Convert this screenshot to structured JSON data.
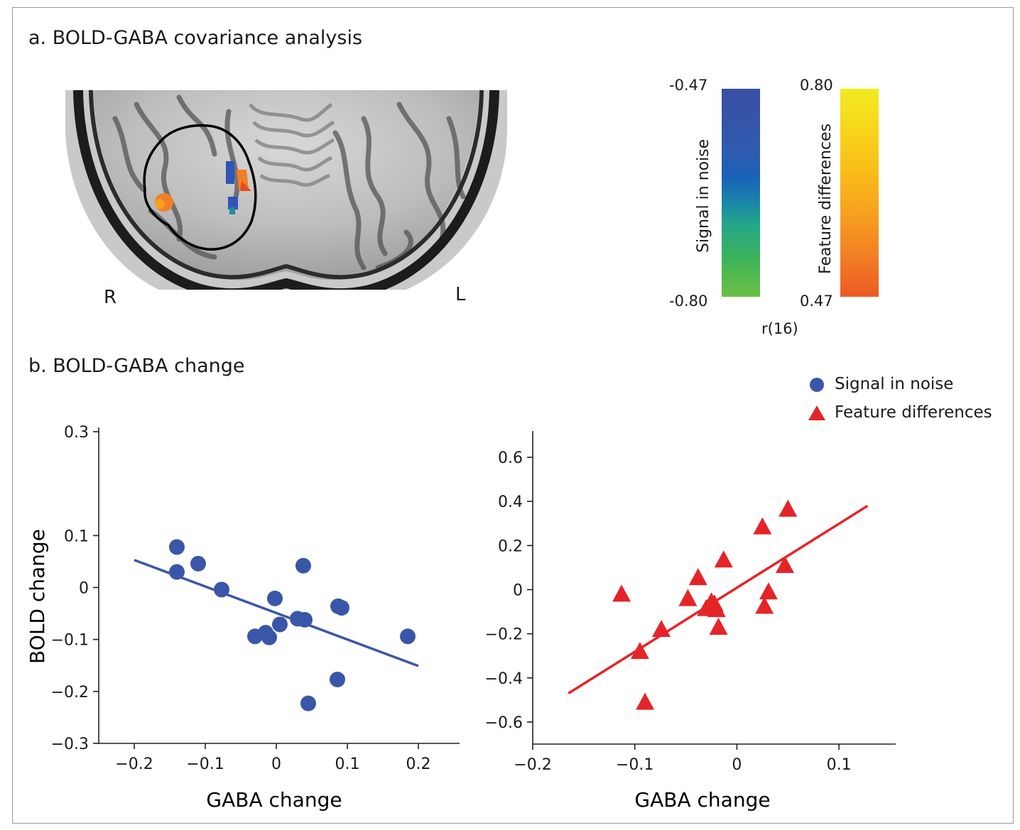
{
  "panel_a": {
    "title": "a. BOLD-GABA covariance analysis",
    "hemisphere_right": "R",
    "hemisphere_left": "L",
    "colorbars": {
      "signal": {
        "label": "Signal in noise",
        "top": "-0.47",
        "bottom": "-0.80",
        "colors": [
          "#3a4ea3",
          "#1a61b8",
          "#24a68a",
          "#6cbf42"
        ]
      },
      "feature": {
        "label": "Feature differences",
        "top": "0.80",
        "bottom": "0.47",
        "colors": [
          "#f1ea22",
          "#f9b918",
          "#f27f24",
          "#ec5a23"
        ]
      },
      "unit": "r(16)"
    }
  },
  "panel_b": {
    "title": "b. BOLD-GABA change",
    "legend": [
      {
        "label": "Signal in noise",
        "marker": "circle",
        "color": "#3a56a8"
      },
      {
        "label": "Feature differences",
        "marker": "triangle",
        "color": "#e52428"
      }
    ]
  },
  "chart_data": [
    {
      "type": "scatter",
      "series": [
        {
          "name": "Signal in noise",
          "marker": "circle",
          "color": "#3a56a8",
          "x": [
            -0.14,
            -0.14,
            -0.11,
            -0.077,
            -0.002,
            -0.03,
            -0.015,
            -0.01,
            0.005,
            0.03,
            0.038,
            0.04,
            0.087,
            0.092,
            0.086,
            0.045,
            0.185
          ],
          "y": [
            0.078,
            0.03,
            0.046,
            -0.004,
            -0.021,
            -0.094,
            -0.087,
            -0.096,
            -0.071,
            -0.06,
            0.042,
            -0.062,
            -0.036,
            -0.039,
            -0.177,
            -0.223,
            -0.094
          ]
        }
      ],
      "fit": {
        "x": [
          -0.2,
          0.2
        ],
        "y": [
          0.053,
          -0.151
        ]
      },
      "xlabel": "GABA change",
      "ylabel": "BOLD change",
      "xlim": [
        -0.25,
        0.25
      ],
      "ylim": [
        -0.3,
        0.3
      ],
      "xticks": [
        -0.2,
        -0.1,
        0,
        0.1,
        0.2
      ],
      "xtick_labels": [
        "−0.2",
        "−0.1",
        "0",
        "0.1",
        "0.2"
      ],
      "yticks": [
        0.3,
        0.1,
        0,
        -0.1,
        -0.2,
        -0.3
      ],
      "ytick_labels": [
        "0.3",
        "0.1",
        "0",
        "−0.1",
        "−0.2",
        "−0.3"
      ]
    },
    {
      "type": "scatter",
      "series": [
        {
          "name": "Feature differences",
          "marker": "triangle",
          "color": "#e52428",
          "x": [
            -0.113,
            -0.095,
            -0.074,
            -0.09,
            -0.048,
            -0.038,
            -0.03,
            -0.025,
            -0.022,
            -0.02,
            -0.013,
            -0.018,
            0.025,
            0.027,
            0.05,
            0.047,
            0.031
          ],
          "y": [
            -0.025,
            -0.285,
            -0.185,
            -0.515,
            -0.045,
            0.05,
            -0.09,
            -0.06,
            -0.07,
            -0.095,
            0.13,
            -0.175,
            0.28,
            -0.08,
            0.36,
            0.105,
            -0.015
          ]
        }
      ],
      "fit": {
        "x": [
          -0.165,
          0.128
        ],
        "y": [
          -0.47,
          0.38
        ]
      },
      "xlabel": "GABA change",
      "ylabel": "",
      "xlim": [
        -0.2,
        0.15
      ],
      "ylim": [
        -0.7,
        0.7
      ],
      "xticks": [
        -0.2,
        -0.1,
        0,
        0.1
      ],
      "xtick_labels": [
        "−0.2",
        "−0.1",
        "0",
        "0.1"
      ],
      "yticks": [
        0.6,
        0.4,
        0.2,
        0,
        -0.2,
        -0.4,
        -0.6
      ],
      "ytick_labels": [
        "0.6",
        "0.4",
        "0.2",
        "0",
        "−0.2",
        "−0.4",
        "−0.6"
      ]
    }
  ]
}
